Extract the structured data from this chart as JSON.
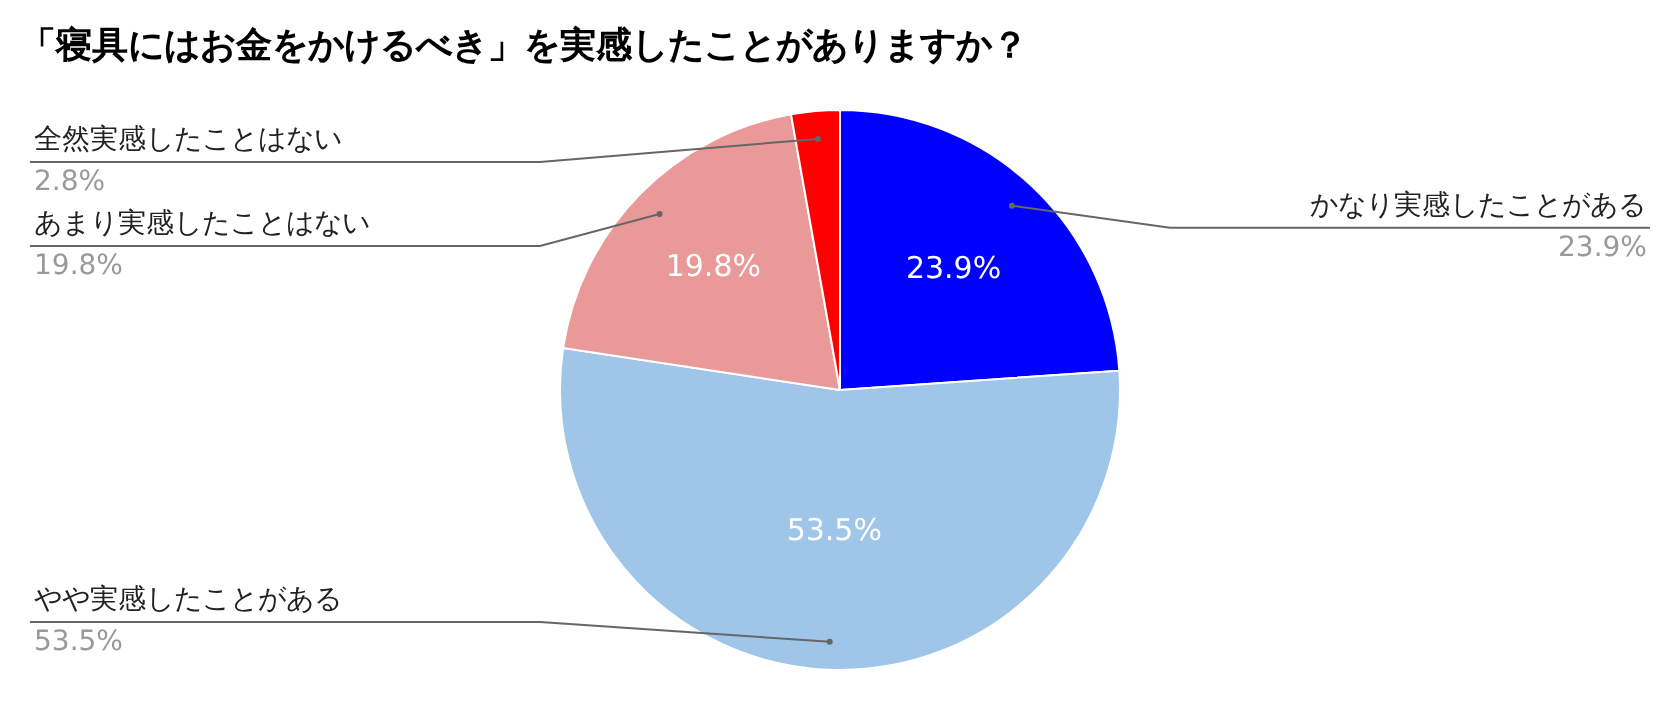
{
  "chart_data": {
    "type": "pie",
    "title": "「寝具にはお金をかけるべき」を実感したことがありますか？",
    "categories": [
      "かなり実感したことがある",
      "やや実感したことがある",
      "あまり実感したことはない",
      "全然実感したことはない"
    ],
    "values": [
      23.9,
      53.5,
      19.8,
      2.8
    ],
    "colors": [
      "#0000ff",
      "#9fc5e8",
      "#ea9999",
      "#ff0000"
    ],
    "value_labels": [
      "23.9%",
      "53.5%",
      "19.8%",
      "2.8%"
    ]
  }
}
